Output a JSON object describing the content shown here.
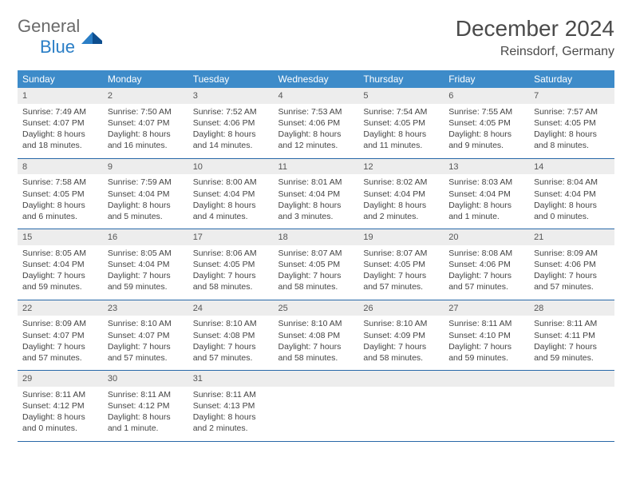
{
  "logo": {
    "word1": "General",
    "word2": "Blue"
  },
  "title": "December 2024",
  "location": "Reinsdorf, Germany",
  "colors": {
    "header_bg": "#3d8bc9",
    "header_text": "#ffffff",
    "daynum_bg": "#ededed",
    "row_border": "#2868a8",
    "text": "#444444",
    "logo_gray": "#6a6a6a",
    "logo_blue": "#2a7ec6"
  },
  "weekdays": [
    "Sunday",
    "Monday",
    "Tuesday",
    "Wednesday",
    "Thursday",
    "Friday",
    "Saturday"
  ],
  "weeks": [
    [
      {
        "n": "1",
        "rise": "Sunrise: 7:49 AM",
        "set": "Sunset: 4:07 PM",
        "day": "Daylight: 8 hours and 18 minutes."
      },
      {
        "n": "2",
        "rise": "Sunrise: 7:50 AM",
        "set": "Sunset: 4:07 PM",
        "day": "Daylight: 8 hours and 16 minutes."
      },
      {
        "n": "3",
        "rise": "Sunrise: 7:52 AM",
        "set": "Sunset: 4:06 PM",
        "day": "Daylight: 8 hours and 14 minutes."
      },
      {
        "n": "4",
        "rise": "Sunrise: 7:53 AM",
        "set": "Sunset: 4:06 PM",
        "day": "Daylight: 8 hours and 12 minutes."
      },
      {
        "n": "5",
        "rise": "Sunrise: 7:54 AM",
        "set": "Sunset: 4:05 PM",
        "day": "Daylight: 8 hours and 11 minutes."
      },
      {
        "n": "6",
        "rise": "Sunrise: 7:55 AM",
        "set": "Sunset: 4:05 PM",
        "day": "Daylight: 8 hours and 9 minutes."
      },
      {
        "n": "7",
        "rise": "Sunrise: 7:57 AM",
        "set": "Sunset: 4:05 PM",
        "day": "Daylight: 8 hours and 8 minutes."
      }
    ],
    [
      {
        "n": "8",
        "rise": "Sunrise: 7:58 AM",
        "set": "Sunset: 4:05 PM",
        "day": "Daylight: 8 hours and 6 minutes."
      },
      {
        "n": "9",
        "rise": "Sunrise: 7:59 AM",
        "set": "Sunset: 4:04 PM",
        "day": "Daylight: 8 hours and 5 minutes."
      },
      {
        "n": "10",
        "rise": "Sunrise: 8:00 AM",
        "set": "Sunset: 4:04 PM",
        "day": "Daylight: 8 hours and 4 minutes."
      },
      {
        "n": "11",
        "rise": "Sunrise: 8:01 AM",
        "set": "Sunset: 4:04 PM",
        "day": "Daylight: 8 hours and 3 minutes."
      },
      {
        "n": "12",
        "rise": "Sunrise: 8:02 AM",
        "set": "Sunset: 4:04 PM",
        "day": "Daylight: 8 hours and 2 minutes."
      },
      {
        "n": "13",
        "rise": "Sunrise: 8:03 AM",
        "set": "Sunset: 4:04 PM",
        "day": "Daylight: 8 hours and 1 minute."
      },
      {
        "n": "14",
        "rise": "Sunrise: 8:04 AM",
        "set": "Sunset: 4:04 PM",
        "day": "Daylight: 8 hours and 0 minutes."
      }
    ],
    [
      {
        "n": "15",
        "rise": "Sunrise: 8:05 AM",
        "set": "Sunset: 4:04 PM",
        "day": "Daylight: 7 hours and 59 minutes."
      },
      {
        "n": "16",
        "rise": "Sunrise: 8:05 AM",
        "set": "Sunset: 4:04 PM",
        "day": "Daylight: 7 hours and 59 minutes."
      },
      {
        "n": "17",
        "rise": "Sunrise: 8:06 AM",
        "set": "Sunset: 4:05 PM",
        "day": "Daylight: 7 hours and 58 minutes."
      },
      {
        "n": "18",
        "rise": "Sunrise: 8:07 AM",
        "set": "Sunset: 4:05 PM",
        "day": "Daylight: 7 hours and 58 minutes."
      },
      {
        "n": "19",
        "rise": "Sunrise: 8:07 AM",
        "set": "Sunset: 4:05 PM",
        "day": "Daylight: 7 hours and 57 minutes."
      },
      {
        "n": "20",
        "rise": "Sunrise: 8:08 AM",
        "set": "Sunset: 4:06 PM",
        "day": "Daylight: 7 hours and 57 minutes."
      },
      {
        "n": "21",
        "rise": "Sunrise: 8:09 AM",
        "set": "Sunset: 4:06 PM",
        "day": "Daylight: 7 hours and 57 minutes."
      }
    ],
    [
      {
        "n": "22",
        "rise": "Sunrise: 8:09 AM",
        "set": "Sunset: 4:07 PM",
        "day": "Daylight: 7 hours and 57 minutes."
      },
      {
        "n": "23",
        "rise": "Sunrise: 8:10 AM",
        "set": "Sunset: 4:07 PM",
        "day": "Daylight: 7 hours and 57 minutes."
      },
      {
        "n": "24",
        "rise": "Sunrise: 8:10 AM",
        "set": "Sunset: 4:08 PM",
        "day": "Daylight: 7 hours and 57 minutes."
      },
      {
        "n": "25",
        "rise": "Sunrise: 8:10 AM",
        "set": "Sunset: 4:08 PM",
        "day": "Daylight: 7 hours and 58 minutes."
      },
      {
        "n": "26",
        "rise": "Sunrise: 8:10 AM",
        "set": "Sunset: 4:09 PM",
        "day": "Daylight: 7 hours and 58 minutes."
      },
      {
        "n": "27",
        "rise": "Sunrise: 8:11 AM",
        "set": "Sunset: 4:10 PM",
        "day": "Daylight: 7 hours and 59 minutes."
      },
      {
        "n": "28",
        "rise": "Sunrise: 8:11 AM",
        "set": "Sunset: 4:11 PM",
        "day": "Daylight: 7 hours and 59 minutes."
      }
    ],
    [
      {
        "n": "29",
        "rise": "Sunrise: 8:11 AM",
        "set": "Sunset: 4:12 PM",
        "day": "Daylight: 8 hours and 0 minutes."
      },
      {
        "n": "30",
        "rise": "Sunrise: 8:11 AM",
        "set": "Sunset: 4:12 PM",
        "day": "Daylight: 8 hours and 1 minute."
      },
      {
        "n": "31",
        "rise": "Sunrise: 8:11 AM",
        "set": "Sunset: 4:13 PM",
        "day": "Daylight: 8 hours and 2 minutes."
      },
      null,
      null,
      null,
      null
    ]
  ]
}
